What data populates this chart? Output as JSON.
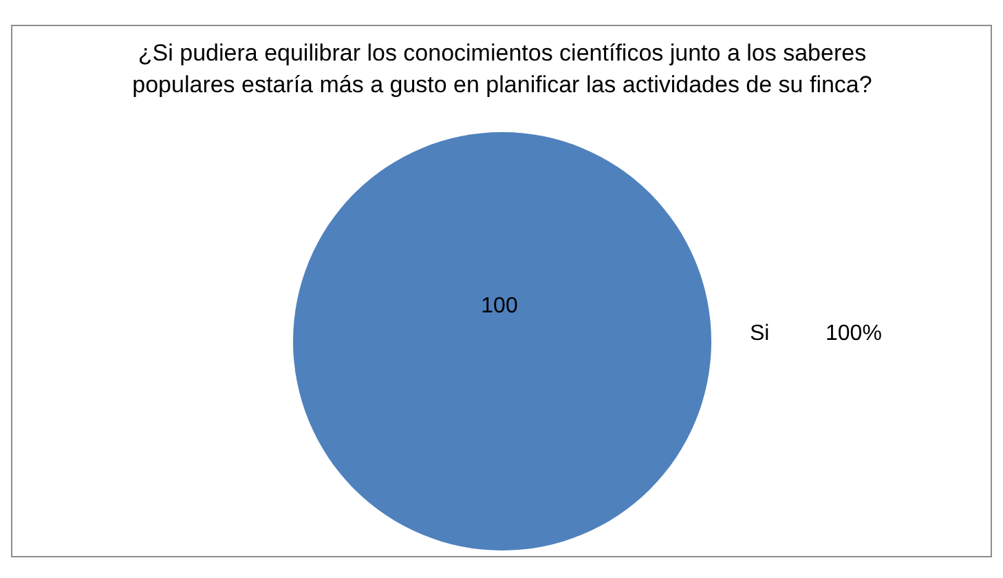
{
  "chart_data": {
    "type": "pie",
    "title": "¿Si pudiera equilibrar los conocimientos científicos junto a los saberes\npopulares estaría más a gusto en planificar las actividades de su finca?",
    "categories": [
      "Si"
    ],
    "values": [
      100
    ],
    "colors": [
      "#4f81bd"
    ],
    "data_labels": true,
    "annotations": [
      "100%"
    ]
  }
}
